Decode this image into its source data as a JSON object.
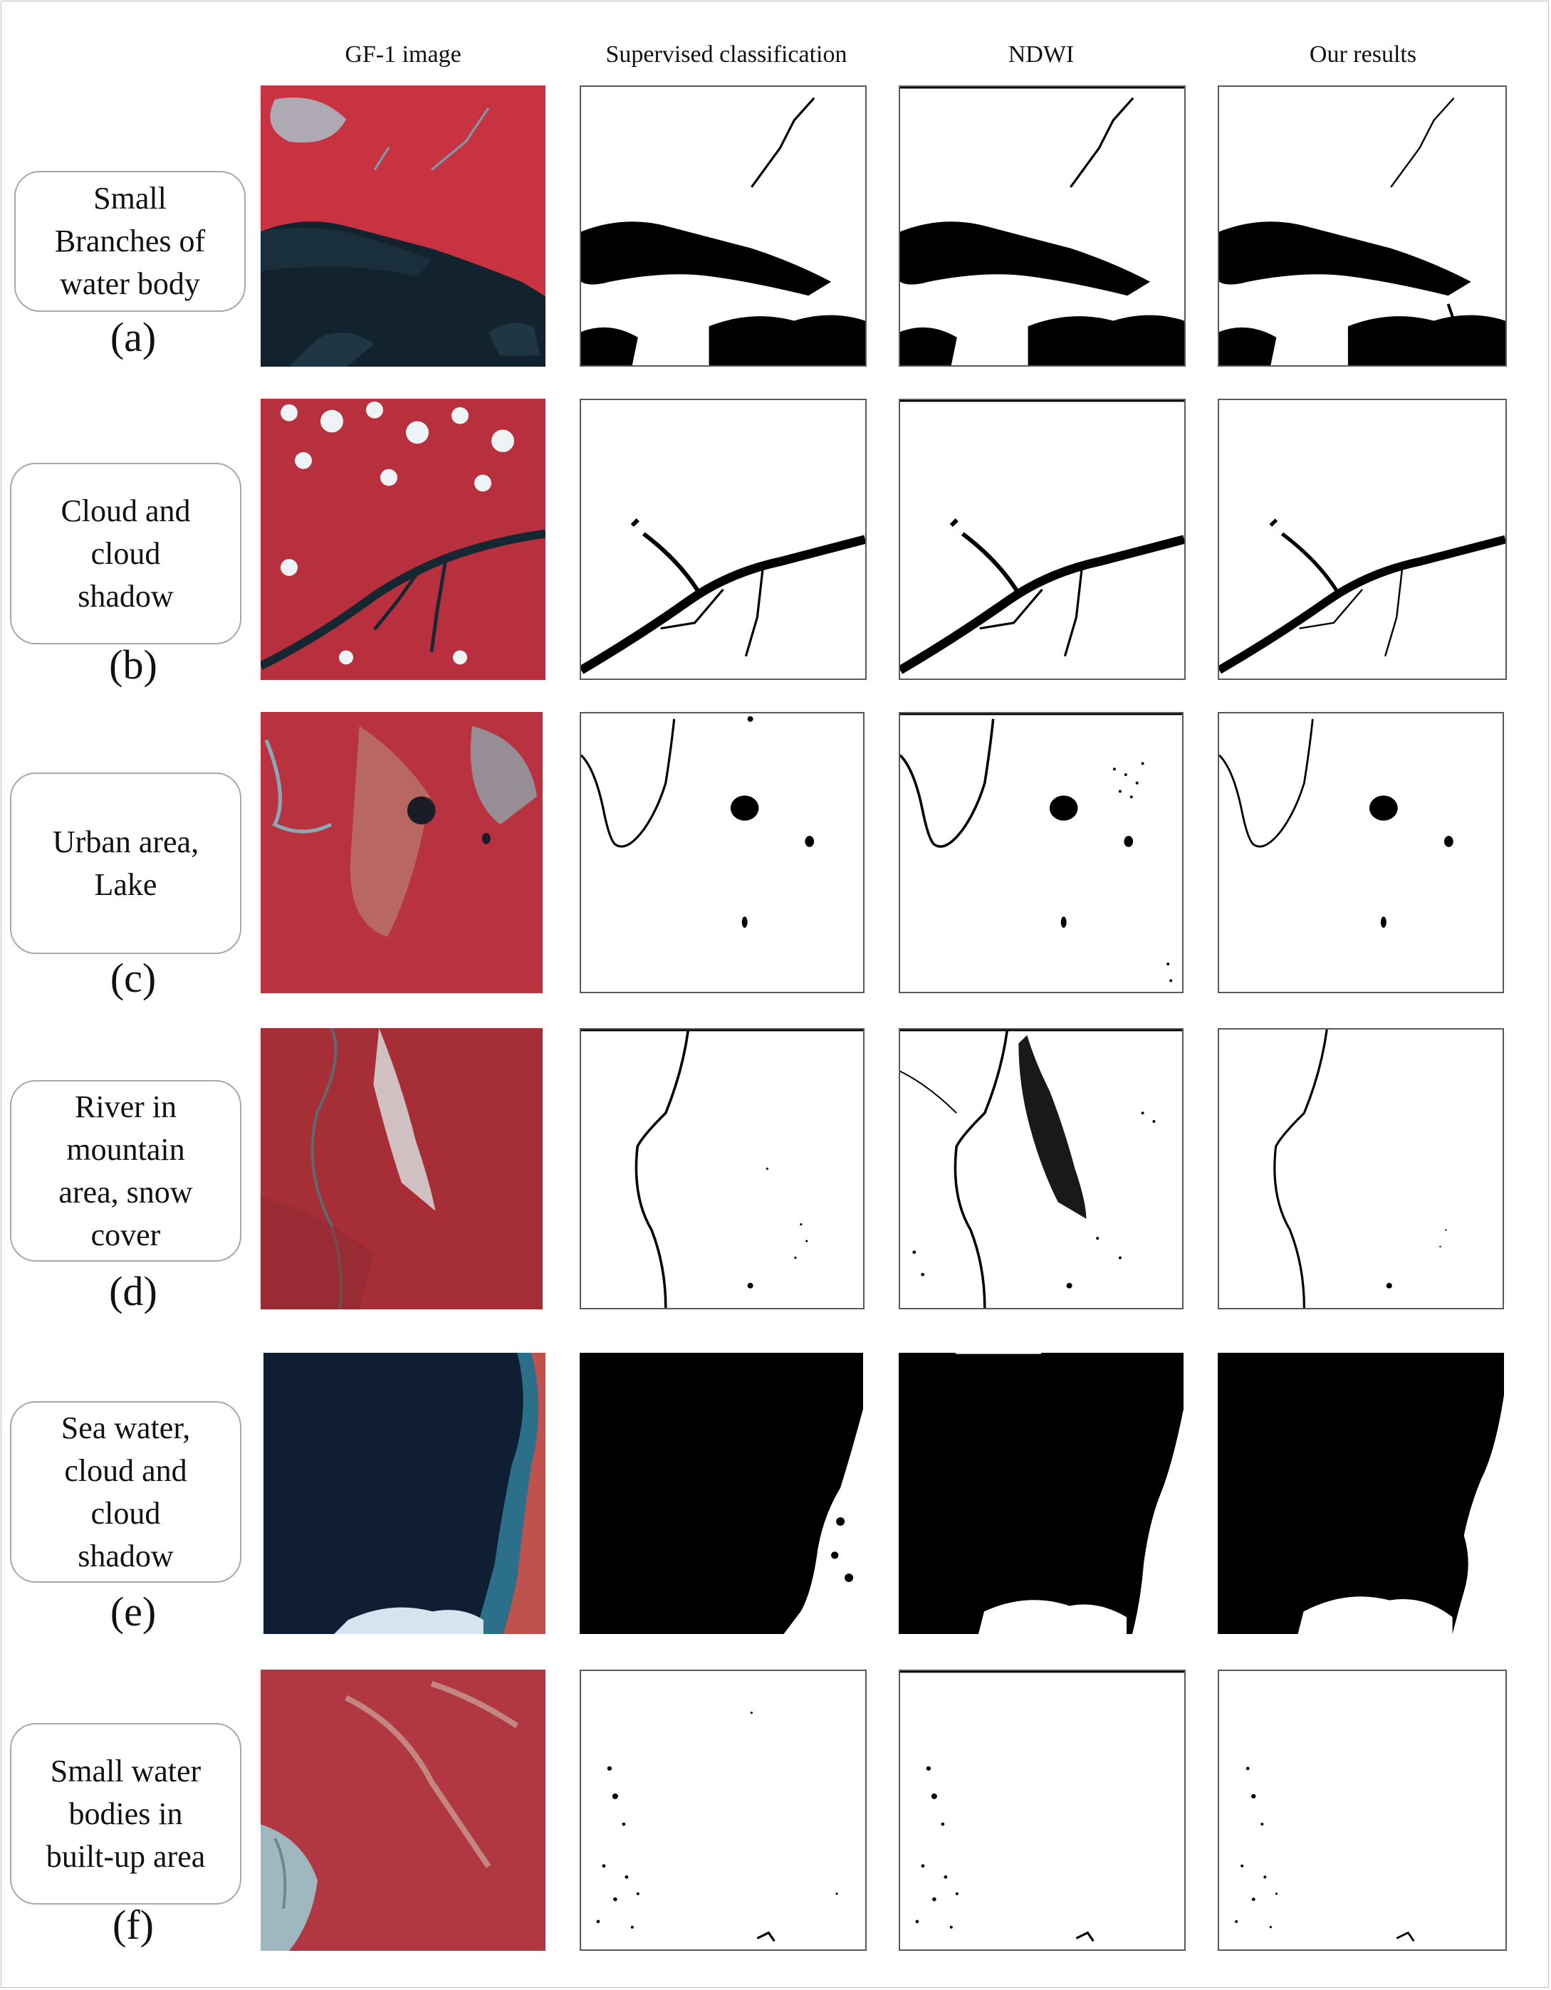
{
  "columns": [
    "GF-1 image",
    "Supervised classification",
    "NDWI",
    "Our results"
  ],
  "rows": [
    {
      "label": "(a)",
      "description": "Small\nBranches of\nwater body"
    },
    {
      "label": "(b)",
      "description": "Cloud and\ncloud\nshadow"
    },
    {
      "label": "(c)",
      "description": "Urban area,\nLake"
    },
    {
      "label": "(d)",
      "description": "River in\nmountain\narea, snow\ncover"
    },
    {
      "label": "(e)",
      "description": "Sea water,\ncloud and\ncloud\nshadow"
    },
    {
      "label": "(f)",
      "description": "Small water\nbodies in\nbuilt-up area"
    }
  ],
  "colors": {
    "vegetation": "#c8303e",
    "water_dark": "#13232e",
    "water_mask": "#000000",
    "background_mask": "#ffffff",
    "cloud": "#e8f0f5",
    "sea": "#0f1e33"
  }
}
